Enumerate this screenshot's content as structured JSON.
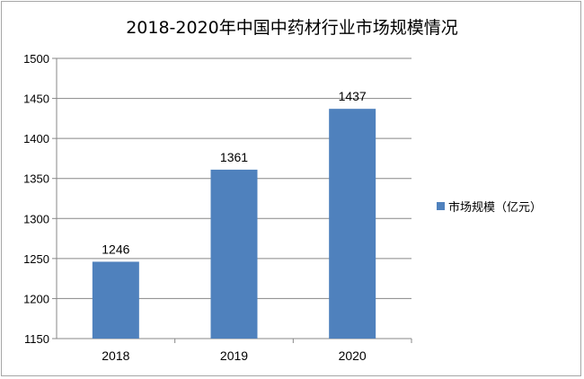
{
  "chart_data": {
    "type": "bar",
    "title": "2018-2020年中国中药材行业市场规模情况",
    "categories": [
      "2018",
      "2019",
      "2020"
    ],
    "series": [
      {
        "name": "市场规模（亿元）",
        "values": [
          1246,
          1361,
          1437
        ],
        "color": "#4f81bd"
      }
    ],
    "ylim": [
      1150,
      1500
    ],
    "yticks": [
      1150,
      1200,
      1250,
      1300,
      1350,
      1400,
      1450,
      1500
    ],
    "grid": true,
    "legend_position": "right",
    "data_labels": true
  }
}
